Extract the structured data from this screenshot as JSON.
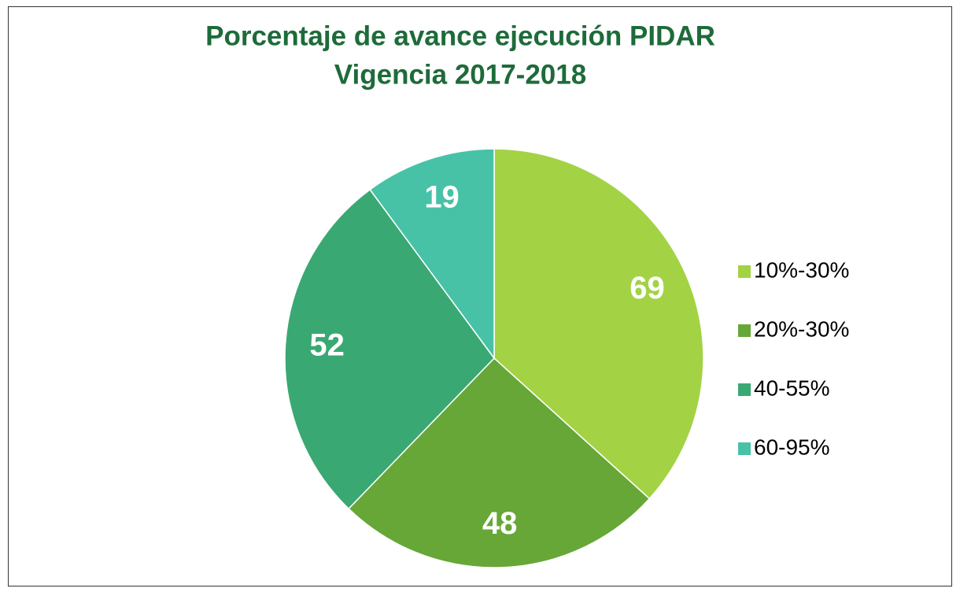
{
  "chart_data": {
    "type": "pie",
    "title": [
      "Porcentaje de avance ejecución PIDAR",
      "Vigencia 2017-2018"
    ],
    "categories": [
      "10%-30%",
      "20%-30%",
      "40-55%",
      "60-95%"
    ],
    "values": [
      69,
      48,
      52,
      19
    ],
    "colors": [
      "#a3d345",
      "#66a737",
      "#3aa873",
      "#47c2a7"
    ],
    "legend": "right"
  }
}
